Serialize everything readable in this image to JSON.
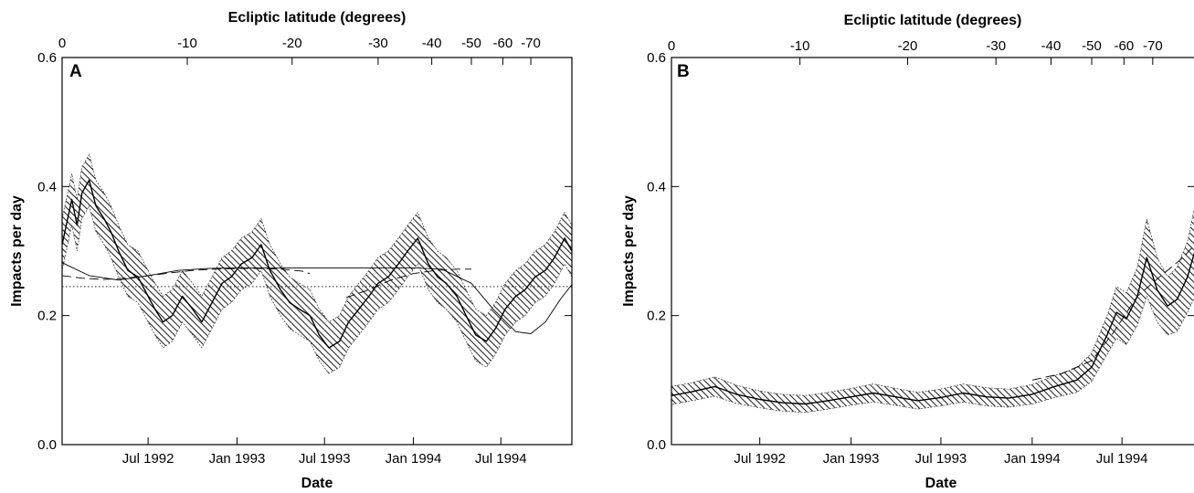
{
  "chart_data": [
    {
      "panel_label": "A",
      "type": "line",
      "title": "",
      "xlabel": "Date",
      "ylabel": "Impacts per day",
      "top_xlabel": "Ecliptic latitude (degrees)",
      "xlim": [
        "1992-01-05",
        "1994-11-25"
      ],
      "ylim": [
        0.0,
        0.6
      ],
      "yticks": [
        0.0,
        0.2,
        0.4,
        0.6
      ],
      "ytick_labels": [
        "0.0",
        "0.2",
        "0.4",
        "0.6"
      ],
      "xticks": [
        {
          "date": "1992-07-01",
          "label": "Jul 1992"
        },
        {
          "date": "1993-01-01",
          "label": "Jan 1993"
        },
        {
          "date": "1993-07-01",
          "label": "Jul 1993"
        },
        {
          "date": "1994-01-01",
          "label": "Jan 1994"
        },
        {
          "date": "1994-07-01",
          "label": "Jul 1994"
        }
      ],
      "top_ticks": [
        {
          "date": "1992-01-05",
          "label": "0"
        },
        {
          "date": "1992-09-20",
          "label": "-10"
        },
        {
          "date": "1993-04-25",
          "label": "-20"
        },
        {
          "date": "1993-10-20",
          "label": "-30"
        },
        {
          "date": "1994-02-08",
          "label": "-40"
        },
        {
          "date": "1994-05-01",
          "label": "-50"
        },
        {
          "date": "1994-07-05",
          "label": "-60"
        },
        {
          "date": "1994-09-01",
          "label": "-70"
        }
      ],
      "band_halfwidth": 0.04,
      "grid": false,
      "series": [
        {
          "role": "measured",
          "style": "solid-with-shaded-band",
          "x": [
            "1992-01-05",
            "1992-01-25",
            "1992-02-05",
            "1992-02-15",
            "1992-03-01",
            "1992-03-15",
            "1992-04-01",
            "1992-04-15",
            "1992-05-01",
            "1992-05-20",
            "1992-06-10",
            "1992-07-01",
            "1992-07-15",
            "1992-08-01",
            "1992-08-20",
            "1992-09-10",
            "1992-10-01",
            "1992-10-20",
            "1992-11-10",
            "1992-12-01",
            "1992-12-20",
            "1993-01-10",
            "1993-02-01",
            "1993-02-20",
            "1993-03-10",
            "1993-04-01",
            "1993-04-20",
            "1993-05-10",
            "1993-06-01",
            "1993-06-20",
            "1993-07-10",
            "1993-08-01",
            "1993-08-20",
            "1993-09-10",
            "1993-10-01",
            "1993-10-20",
            "1993-11-10",
            "1993-12-01",
            "1993-12-20",
            "1994-01-10",
            "1994-02-01",
            "1994-02-20",
            "1994-03-10",
            "1994-04-01",
            "1994-04-20",
            "1994-05-10",
            "1994-06-01",
            "1994-06-20",
            "1994-07-10",
            "1994-08-01",
            "1994-08-20",
            "1994-09-10",
            "1994-10-01",
            "1994-10-20",
            "1994-11-10",
            "1994-11-25"
          ],
          "y": [
            0.31,
            0.38,
            0.34,
            0.39,
            0.41,
            0.37,
            0.35,
            0.33,
            0.3,
            0.27,
            0.26,
            0.23,
            0.21,
            0.19,
            0.2,
            0.23,
            0.21,
            0.19,
            0.22,
            0.25,
            0.26,
            0.28,
            0.29,
            0.31,
            0.27,
            0.24,
            0.22,
            0.21,
            0.2,
            0.17,
            0.15,
            0.16,
            0.19,
            0.21,
            0.23,
            0.25,
            0.26,
            0.28,
            0.3,
            0.32,
            0.28,
            0.26,
            0.25,
            0.23,
            0.2,
            0.17,
            0.16,
            0.18,
            0.21,
            0.23,
            0.24,
            0.26,
            0.27,
            0.29,
            0.32,
            0.3
          ]
        },
        {
          "role": "model-dashed",
          "style": "long-dash",
          "x": [
            "1992-01-05",
            "1992-02-15",
            "1992-04-01",
            "1992-05-15",
            "1992-07-01",
            "1992-08-15",
            "1992-10-01",
            "1992-11-15",
            "1993-01-01",
            "1993-02-15",
            "1993-04-01",
            "1993-05-15",
            "1993-06-01"
          ],
          "y": [
            0.262,
            0.258,
            0.256,
            0.258,
            0.262,
            0.266,
            0.27,
            0.272,
            0.273,
            0.273,
            0.272,
            0.269,
            0.265
          ]
        },
        {
          "role": "model-dashed",
          "style": "long-dash",
          "x": [
            "1993-08-15",
            "1993-10-01",
            "1993-11-15",
            "1994-01-01",
            "1994-02-15",
            "1994-04-01",
            "1994-05-01"
          ],
          "y": [
            0.228,
            0.24,
            0.255,
            0.265,
            0.27,
            0.272,
            0.272
          ]
        },
        {
          "role": "model-solid",
          "style": "thin-solid",
          "x": [
            "1992-01-05",
            "1992-03-01",
            "1992-05-01",
            "1992-07-01",
            "1992-09-01",
            "1992-11-01",
            "1993-01-01",
            "1993-03-01",
            "1993-05-01",
            "1993-07-01",
            "1993-09-01",
            "1993-11-01",
            "1994-01-01",
            "1994-03-01",
            "1994-05-01",
            "1994-06-15",
            "1994-08-01",
            "1994-09-01",
            "1994-10-01",
            "1994-11-01",
            "1994-11-25"
          ],
          "y": [
            0.282,
            0.262,
            0.255,
            0.262,
            0.27,
            0.273,
            0.274,
            0.274,
            0.274,
            0.274,
            0.274,
            0.274,
            0.274,
            0.272,
            0.25,
            0.21,
            0.175,
            0.172,
            0.19,
            0.225,
            0.248
          ]
        },
        {
          "role": "average",
          "style": "dotted",
          "x": [
            "1992-01-05",
            "1994-11-25"
          ],
          "y": [
            0.245,
            0.245
          ]
        }
      ]
    },
    {
      "panel_label": "B",
      "type": "line",
      "title": "",
      "xlabel": "Date",
      "ylabel": "Impacts per day",
      "top_xlabel": "Ecliptic latitude (degrees)",
      "xlim": [
        "1992-01-05",
        "1994-11-25"
      ],
      "ylim": [
        0.0,
        0.6
      ],
      "yticks": [
        0.0,
        0.2,
        0.4,
        0.6
      ],
      "ytick_labels": [
        "0.0",
        "0.2",
        "0.4",
        "0.6"
      ],
      "xticks": [
        {
          "date": "1992-07-01",
          "label": "Jul 1992"
        },
        {
          "date": "1993-01-01",
          "label": "Jan 1993"
        },
        {
          "date": "1993-07-01",
          "label": "Jul 1993"
        },
        {
          "date": "1994-01-01",
          "label": "Jan 1994"
        },
        {
          "date": "1994-07-01",
          "label": "Jul 1994"
        }
      ],
      "top_ticks": [
        {
          "date": "1992-01-05",
          "label": "0"
        },
        {
          "date": "1992-09-20",
          "label": "-10"
        },
        {
          "date": "1993-04-25",
          "label": "-20"
        },
        {
          "date": "1993-10-20",
          "label": "-30"
        },
        {
          "date": "1994-02-08",
          "label": "-40"
        },
        {
          "date": "1994-05-01",
          "label": "-50"
        },
        {
          "date": "1994-07-05",
          "label": "-60"
        },
        {
          "date": "1994-09-01",
          "label": "-70"
        }
      ],
      "grid": false,
      "series": [
        {
          "role": "measured",
          "style": "solid-with-shaded-band",
          "x": [
            "1992-01-05",
            "1992-02-15",
            "1992-04-01",
            "1992-05-15",
            "1992-07-01",
            "1992-08-15",
            "1992-10-01",
            "1992-11-15",
            "1993-01-01",
            "1993-02-15",
            "1993-04-01",
            "1993-05-15",
            "1993-07-01",
            "1993-08-15",
            "1993-10-01",
            "1993-11-15",
            "1994-01-01",
            "1994-02-15",
            "1994-04-01",
            "1994-05-01",
            "1994-06-01",
            "1994-06-20",
            "1994-07-10",
            "1994-08-01",
            "1994-08-20",
            "1994-09-10",
            "1994-10-01",
            "1994-10-20",
            "1994-11-10",
            "1994-11-25"
          ],
          "y": [
            0.076,
            0.082,
            0.09,
            0.078,
            0.07,
            0.065,
            0.063,
            0.068,
            0.074,
            0.08,
            0.074,
            0.068,
            0.073,
            0.08,
            0.074,
            0.072,
            0.078,
            0.09,
            0.1,
            0.12,
            0.17,
            0.205,
            0.195,
            0.23,
            0.29,
            0.24,
            0.215,
            0.225,
            0.26,
            0.3
          ],
          "band_halfwidth": [
            0.014,
            0.014,
            0.015,
            0.014,
            0.013,
            0.013,
            0.013,
            0.013,
            0.013,
            0.014,
            0.013,
            0.013,
            0.013,
            0.014,
            0.014,
            0.014,
            0.015,
            0.017,
            0.019,
            0.022,
            0.03,
            0.04,
            0.04,
            0.045,
            0.06,
            0.05,
            0.045,
            0.05,
            0.055,
            0.07
          ]
        },
        {
          "role": "model-dashed",
          "style": "long-dash",
          "x": [
            "1994-01-01",
            "1994-03-01",
            "1994-05-01",
            "1994-06-15",
            "1994-08-01",
            "1994-09-15",
            "1994-11-01",
            "1994-11-25"
          ],
          "y": [
            0.1,
            0.11,
            0.13,
            0.175,
            0.23,
            0.26,
            0.29,
            0.31
          ]
        }
      ]
    }
  ]
}
